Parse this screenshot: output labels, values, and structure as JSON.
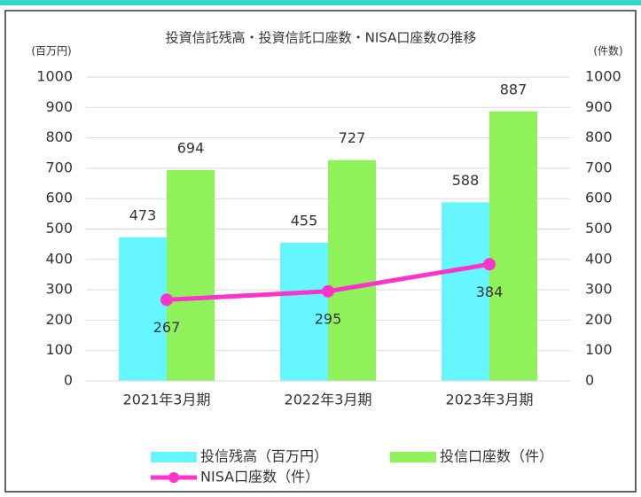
{
  "chart_data": {
    "type": "bar",
    "title": "投資信託残高・投資信託口座数・NISA口座数の推移",
    "y_label": "(百万円)",
    "y2_label": "(件数)",
    "categories": [
      "2021年3月期",
      "2022年3月期",
      "2023年3月期"
    ],
    "series": [
      {
        "name": "投信残高（百万円）",
        "type": "bar",
        "color": "#66f6ff",
        "values": [
          473,
          455,
          588
        ]
      },
      {
        "name": "投信口座数（件）",
        "type": "bar",
        "color": "#8ff25b",
        "values": [
          694,
          727,
          887
        ]
      },
      {
        "name": "NISA口座数（件）",
        "type": "line",
        "axis": "y2",
        "color": "#ff33cc",
        "values": [
          267,
          295,
          384
        ]
      }
    ],
    "ylim": [
      0,
      1000
    ],
    "yticks": [
      0,
      100,
      200,
      300,
      400,
      500,
      600,
      700,
      800,
      900,
      1000
    ],
    "y2lim": [
      0,
      1000
    ],
    "y2ticks": [
      0,
      100,
      200,
      300,
      400,
      500,
      600,
      700,
      800,
      900,
      1000
    ],
    "grid": true,
    "legend": "bottom"
  }
}
